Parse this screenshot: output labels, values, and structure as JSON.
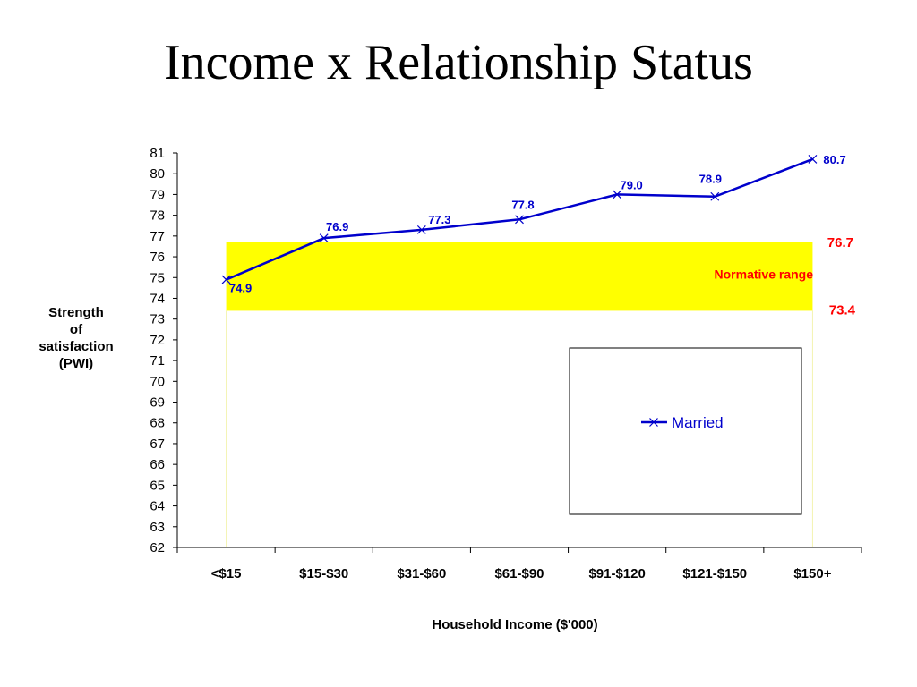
{
  "chart_data": {
    "type": "line",
    "title": "Income x Relationship Status",
    "xlabel": "Household Income ($'000)",
    "ylabel_lines": [
      "Strength",
      "of",
      "satisfaction",
      "(PWI)"
    ],
    "categories": [
      "<$15",
      "$15-$30",
      "$31-$60",
      "$61-$90",
      "$91-$120",
      "$121-$150",
      "$150+"
    ],
    "series": [
      {
        "name": "Married",
        "values": [
          74.9,
          76.9,
          77.3,
          77.8,
          79.0,
          78.9,
          80.7
        ],
        "labels": [
          "74.9",
          "76.9",
          "77.3",
          "77.8",
          "79.0",
          "78.9",
          "80.7"
        ],
        "color": "#0000cc",
        "marker": "x"
      }
    ],
    "ylim": [
      62,
      81
    ],
    "yticks": [
      62,
      63,
      64,
      65,
      66,
      67,
      68,
      69,
      70,
      71,
      72,
      73,
      74,
      75,
      76,
      77,
      78,
      79,
      80,
      81
    ],
    "normative_range": {
      "label": "Normative range",
      "upper": 76.7,
      "lower": 73.4,
      "upper_label": "76.7",
      "lower_label": "73.4",
      "fill_color": "#ffff00",
      "text_color": "#ff0000"
    },
    "legend": {
      "position": "lower-right",
      "label": "Married"
    },
    "grid": false
  }
}
